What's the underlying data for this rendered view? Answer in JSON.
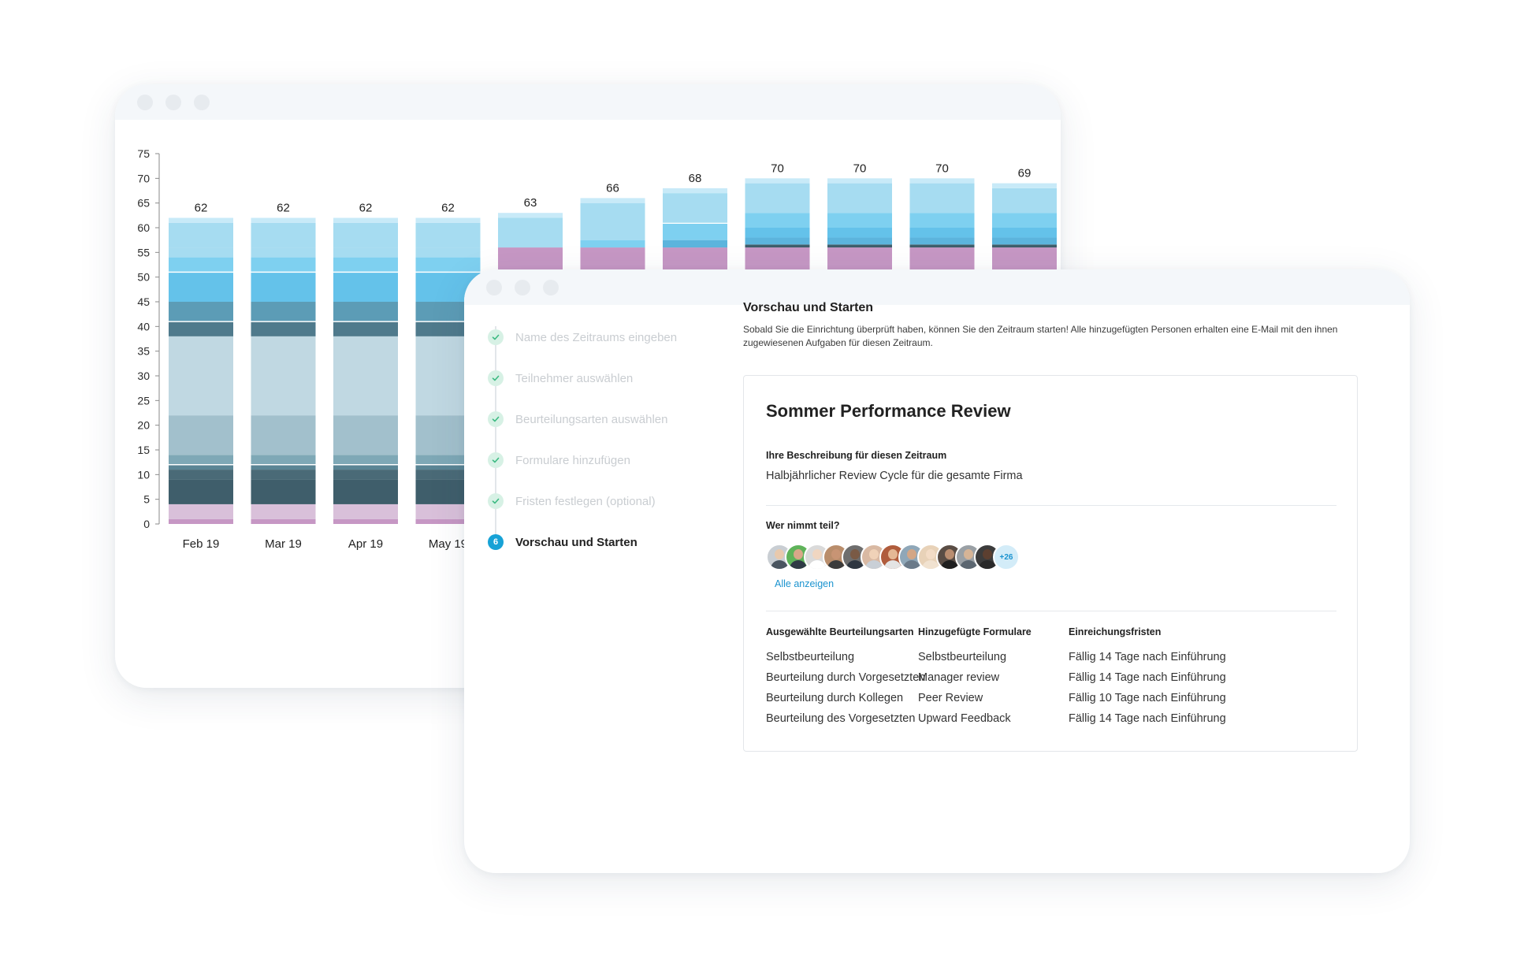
{
  "chart_window": {
    "chart_data": {
      "type": "bar",
      "stacked": true,
      "categories": [
        "Feb 19",
        "Mar 19",
        "Apr 19",
        "May 19",
        "",
        "",
        "",
        "",
        "",
        "",
        ""
      ],
      "totals": [
        62,
        62,
        62,
        62,
        63,
        66,
        68,
        70,
        70,
        70,
        69
      ],
      "yticks": [
        0,
        5,
        10,
        15,
        20,
        25,
        30,
        35,
        40,
        45,
        50,
        55,
        60,
        65,
        70,
        75
      ],
      "ylim": [
        0,
        75
      ],
      "colors": {
        "layers": [
          "#c697c4",
          "#d9c0da",
          "#3f5e6b",
          "#5a8595",
          "#7ea8b6",
          "#a2c0cc",
          "#c0d8e2",
          "#4a7b8e",
          "#5c9cb6",
          "#64c2ea",
          "#7ed0f0",
          "#a6dcf1",
          "#c8eaf8"
        ]
      }
    }
  },
  "wizard_window": {
    "steps": [
      {
        "label": "Name des Zeitraums eingeben",
        "status": "done"
      },
      {
        "label": "Teilnehmer auswählen",
        "status": "done"
      },
      {
        "label": "Beurteilungsarten auswählen",
        "status": "done"
      },
      {
        "label": "Formulare hinzufügen",
        "status": "done"
      },
      {
        "label": "Fristen festlegen (optional)",
        "status": "done"
      },
      {
        "label": "Vorschau und Starten",
        "status": "active",
        "number": "6"
      }
    ],
    "section_title": "Vorschau und Starten",
    "section_description": "Sobald Sie die Einrichtung überprüft haben, können Sie den Zeitraum starten! Alle hinzugefügten Personen erhalten eine E-Mail mit den ihnen zugewiesenen Aufgaben für diesen Zeitraum.",
    "card": {
      "title": "Sommer Performance Review",
      "description_label": "Ihre Beschreibung für diesen Zeitraum",
      "description_value": "Halbjährlicher Review Cycle für die gesamte Firma",
      "participants_label": "Wer nimmt teil?",
      "more_count": "+26",
      "show_all": "Alle anzeigen",
      "columns": [
        {
          "header": "Ausgewählte Beurteilungsarten",
          "items": [
            "Selbstbeurteilung",
            "Beurteilung durch Vorgesetzten",
            "Beurteilung durch Kollegen",
            "Beurteilung des Vorgesetzten"
          ]
        },
        {
          "header": "Hinzugefügte Formulare",
          "items": [
            "Selbstbeurteilung",
            "Manager review",
            "Peer Review",
            "Upward Feedback"
          ]
        },
        {
          "header": "Einreichungsfristen",
          "items": [
            "Fällig 14 Tage nach Einführung",
            "Fällig 14 Tage nach Einführung",
            "Fällig 10 Tage nach Einführung",
            "Fällig 14 Tage nach Einführung"
          ]
        }
      ]
    }
  }
}
